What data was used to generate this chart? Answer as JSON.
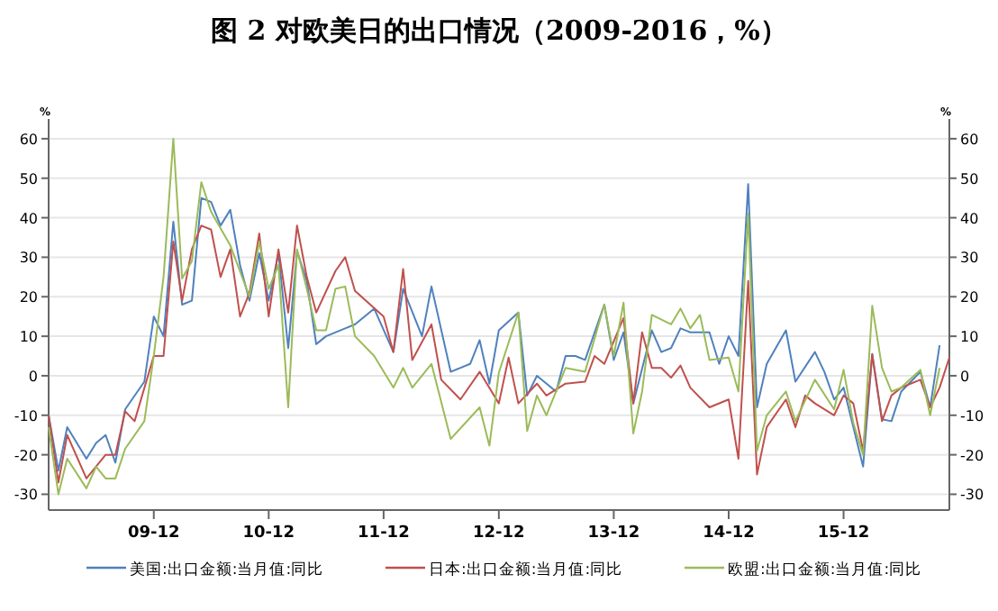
{
  "chart_data": {
    "type": "line",
    "title": "图 2 对欧美日的出口情况（2009-2016，%）",
    "ylabel": "%",
    "y2label": "%",
    "xlim": [
      "2009-01",
      "2016-11"
    ],
    "xticks": [
      {
        "value": "2009-12",
        "label": "09-12"
      },
      {
        "value": "2010-12",
        "label": "10-12"
      },
      {
        "value": "2011-12",
        "label": "11-12"
      },
      {
        "value": "2012-12",
        "label": "12-12"
      },
      {
        "value": "2013-12",
        "label": "13-12"
      },
      {
        "value": "2014-12",
        "label": "14-12"
      },
      {
        "value": "2015-12",
        "label": "15-12"
      }
    ],
    "ylim": [
      -34,
      65
    ],
    "yticks": [
      -30,
      -20,
      -10,
      0,
      10,
      20,
      30,
      40,
      50,
      60
    ],
    "y2lim": [
      -34,
      65
    ],
    "y2ticks": [
      -30,
      -20,
      -10,
      0,
      10,
      20,
      30,
      40,
      50,
      60
    ],
    "grid": "y",
    "legend": "bottom",
    "line_style": "solid",
    "series": [
      {
        "name": "美国:出口金额:当月值:同比",
        "color": "#4f81bd",
        "x": [
          "2009-01",
          "2009-02",
          "2009-03",
          "2009-05",
          "2009-06",
          "2009-07",
          "2009-08",
          "2009-09",
          "2009-11",
          "2009-12",
          "2010-01",
          "2010-02",
          "2010-03",
          "2010-04",
          "2010-05",
          "2010-06",
          "2010-07",
          "2010-08",
          "2010-09",
          "2010-10",
          "2010-11",
          "2010-12",
          "2011-01",
          "2011-02",
          "2011-03",
          "2011-04",
          "2011-05",
          "2011-06",
          "2011-08",
          "2011-09",
          "2011-11",
          "2012-01",
          "2012-02",
          "2012-04",
          "2012-05",
          "2012-07",
          "2012-09",
          "2012-10",
          "2012-11",
          "2012-12",
          "2013-02",
          "2013-03",
          "2013-04",
          "2013-06",
          "2013-07",
          "2013-08",
          "2013-09",
          "2013-11",
          "2013-12",
          "2014-01",
          "2014-02",
          "2014-04",
          "2014-05",
          "2014-06",
          "2014-07",
          "2014-08",
          "2014-10",
          "2014-11",
          "2014-12",
          "2015-01",
          "2015-02",
          "2015-03",
          "2015-04",
          "2015-06",
          "2015-07",
          "2015-09",
          "2015-10",
          "2015-11",
          "2015-12",
          "2016-01",
          "2016-02",
          "2016-03",
          "2016-04",
          "2016-05",
          "2016-06",
          "2016-08",
          "2016-09",
          "2016-10"
        ],
        "values": [
          -10,
          -24,
          -13,
          -21,
          -17,
          -15,
          -22,
          -8.5,
          -1.5,
          15,
          10,
          39,
          18,
          19,
          45,
          44,
          38,
          42,
          28,
          19,
          31,
          19,
          31,
          7,
          31.5,
          24,
          8,
          10,
          12,
          13,
          17,
          6,
          22,
          10,
          22.6,
          1,
          3,
          9,
          -2,
          11.5,
          16,
          -5,
          0,
          -4,
          5,
          5,
          4,
          18,
          4,
          11,
          -7,
          11.5,
          6,
          7,
          12,
          11,
          11,
          3,
          10,
          5,
          48.5,
          -8,
          3,
          11.5,
          -1.5,
          6,
          1,
          -6,
          -3,
          -13,
          -23,
          5.5,
          -11,
          -11.5,
          -4,
          1,
          -8,
          7.7
        ]
      },
      {
        "name": "日本:出口金额:当月值:同比",
        "color": "#c0504d",
        "x": [
          "2009-01",
          "2009-02",
          "2009-03",
          "2009-05",
          "2009-07",
          "2009-08",
          "2009-09",
          "2009-10",
          "2009-12",
          "2010-01",
          "2010-02",
          "2010-03",
          "2010-04",
          "2010-05",
          "2010-06",
          "2010-07",
          "2010-08",
          "2010-09",
          "2010-10",
          "2010-11",
          "2010-12",
          "2011-01",
          "2011-02",
          "2011-03",
          "2011-04",
          "2011-05",
          "2011-07",
          "2011-08",
          "2011-09",
          "2011-12",
          "2012-01",
          "2012-02",
          "2012-03",
          "2012-05",
          "2012-06",
          "2012-08",
          "2012-10",
          "2012-12",
          "2013-01",
          "2013-02",
          "2013-04",
          "2013-05",
          "2013-07",
          "2013-09",
          "2013-10",
          "2013-11",
          "2014-01",
          "2014-02",
          "2014-03",
          "2014-04",
          "2014-05",
          "2014-06",
          "2014-07",
          "2014-08",
          "2014-10",
          "2014-12",
          "2015-01",
          "2015-02",
          "2015-03",
          "2015-04",
          "2015-06",
          "2015-07",
          "2015-08",
          "2015-09",
          "2015-11",
          "2015-12",
          "2016-01",
          "2016-02",
          "2016-03",
          "2016-04",
          "2016-05",
          "2016-06",
          "2016-08",
          "2016-09",
          "2016-10",
          "2016-11"
        ],
        "values": [
          -10,
          -27,
          -15,
          -26,
          -20,
          -20,
          -9,
          -11.5,
          5,
          5,
          34,
          19,
          32,
          38,
          37,
          25,
          32,
          15,
          21,
          36,
          15,
          32,
          16,
          38,
          25,
          16,
          26.5,
          30,
          21.5,
          15,
          6,
          27,
          4,
          13,
          -1,
          -6,
          1,
          -7,
          4.6,
          -7,
          -2,
          -5,
          -2,
          -1.5,
          5,
          3,
          14.6,
          -7,
          11,
          2,
          2,
          -0.5,
          2.6,
          -3,
          -8,
          -6,
          -21,
          24,
          -25,
          -13,
          -6,
          -13,
          -5,
          -7,
          -10,
          -5,
          -7,
          -19,
          5.4,
          -11.5,
          -5,
          -3,
          -1,
          -8,
          -3,
          4.6
        ]
      },
      {
        "name": "欧盟:出口金额:当月值:同比",
        "color": "#9bbb59",
        "x": [
          "2009-01",
          "2009-02",
          "2009-03",
          "2009-05",
          "2009-06",
          "2009-07",
          "2009-08",
          "2009-09",
          "2009-11",
          "2009-12",
          "2010-01",
          "2010-02",
          "2010-03",
          "2010-04",
          "2010-05",
          "2010-06",
          "2010-08",
          "2010-10",
          "2010-11",
          "2010-12",
          "2011-01",
          "2011-02",
          "2011-03",
          "2011-04",
          "2011-05",
          "2011-06",
          "2011-07",
          "2011-08",
          "2011-09",
          "2011-11",
          "2012-01",
          "2012-02",
          "2012-03",
          "2012-05",
          "2012-07",
          "2012-10",
          "2012-11",
          "2012-12",
          "2013-02",
          "2013-03",
          "2013-04",
          "2013-05",
          "2013-07",
          "2013-09",
          "2013-11",
          "2013-12",
          "2014-01",
          "2014-02",
          "2014-03",
          "2014-04",
          "2014-06",
          "2014-07",
          "2014-08",
          "2014-09",
          "2014-10",
          "2014-12",
          "2015-01",
          "2015-02",
          "2015-03",
          "2015-04",
          "2015-06",
          "2015-07",
          "2015-09",
          "2015-11",
          "2015-12",
          "2016-01",
          "2016-02",
          "2016-03",
          "2016-04",
          "2016-05",
          "2016-06",
          "2016-08",
          "2016-09",
          "2016-10"
        ],
        "values": [
          -13,
          -30,
          -21,
          -28.5,
          -23,
          -26,
          -26,
          -18.5,
          -11.5,
          5,
          25,
          60,
          24.6,
          29,
          49,
          41.5,
          33,
          20,
          34,
          22,
          28,
          -8,
          32,
          22,
          11.5,
          11.5,
          22,
          22.6,
          10,
          5,
          -3,
          2,
          -3,
          3,
          -16,
          -8,
          -17.7,
          0.8,
          16,
          -14,
          -5,
          -10,
          2,
          1,
          18,
          5,
          18.5,
          -14.6,
          -4,
          15.4,
          13,
          17,
          12,
          15.4,
          4,
          4.6,
          -4,
          41,
          -19,
          -10,
          -4,
          -11.5,
          -1,
          -8.5,
          1.5,
          -12,
          -20,
          17.7,
          2,
          -4,
          -3,
          1.5,
          -10,
          2
        ]
      }
    ]
  }
}
